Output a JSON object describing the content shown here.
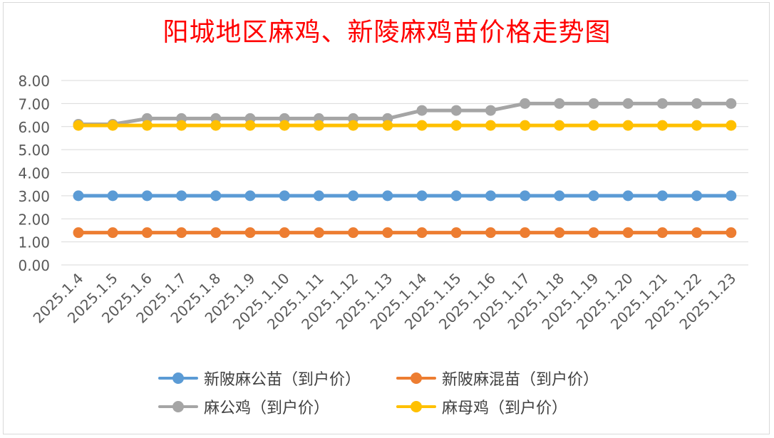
{
  "chart_data": {
    "type": "line",
    "title": "阳城地区麻鸡、新陵麻鸡苗价格走势图",
    "categories": [
      "2025.1.4",
      "2025.1.5",
      "2025.1.6",
      "2025.1.7",
      "2025.1.8",
      "2025.1.9",
      "2025.1.10",
      "2025.1.11",
      "2025.1.12",
      "2025.1.13",
      "2025.1.14",
      "2025.1.15",
      "2025.1.16",
      "2025.1.17",
      "2025.1.18",
      "2025.1.19",
      "2025.1.20",
      "2025.1.21",
      "2025.1.22",
      "2025.1.23"
    ],
    "ylim": [
      0,
      8
    ],
    "yticks": [
      "0.00",
      "1.00",
      "2.00",
      "3.00",
      "4.00",
      "5.00",
      "6.00",
      "7.00",
      "8.00"
    ],
    "grid": true,
    "legend_position": "bottom",
    "series": [
      {
        "name": "新陂麻公苗（到户价）",
        "color": "#5b9bd5",
        "values": [
          3.0,
          3.0,
          3.0,
          3.0,
          3.0,
          3.0,
          3.0,
          3.0,
          3.0,
          3.0,
          3.0,
          3.0,
          3.0,
          3.0,
          3.0,
          3.0,
          3.0,
          3.0,
          3.0,
          3.0
        ]
      },
      {
        "name": "新陂麻混苗（到户价）",
        "color": "#ed7d31",
        "values": [
          1.4,
          1.4,
          1.4,
          1.4,
          1.4,
          1.4,
          1.4,
          1.4,
          1.4,
          1.4,
          1.4,
          1.4,
          1.4,
          1.4,
          1.4,
          1.4,
          1.4,
          1.4,
          1.4,
          1.4
        ]
      },
      {
        "name": "麻公鸡（到户价）",
        "color": "#a5a5a5",
        "values": [
          6.1,
          6.1,
          6.35,
          6.35,
          6.35,
          6.35,
          6.35,
          6.35,
          6.35,
          6.35,
          6.7,
          6.7,
          6.7,
          7.0,
          7.0,
          7.0,
          7.0,
          7.0,
          7.0,
          7.0
        ]
      },
      {
        "name": "麻母鸡（到户价）",
        "color": "#ffc000",
        "values": [
          6.05,
          6.05,
          6.05,
          6.05,
          6.05,
          6.05,
          6.05,
          6.05,
          6.05,
          6.05,
          6.05,
          6.05,
          6.05,
          6.05,
          6.05,
          6.05,
          6.05,
          6.05,
          6.05,
          6.05
        ]
      }
    ]
  }
}
